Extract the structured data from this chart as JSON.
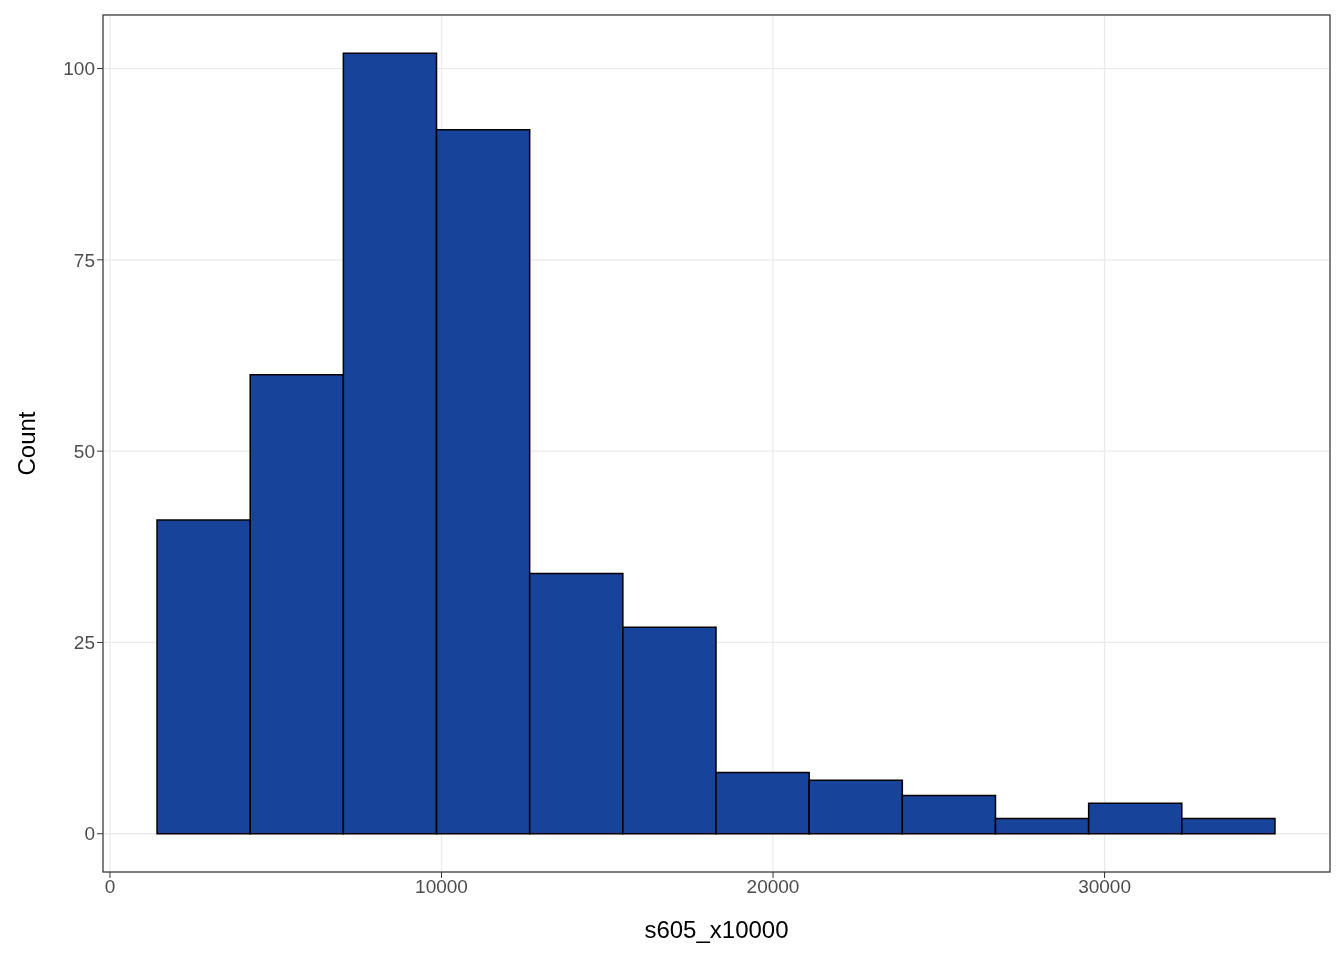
{
  "chart_data": {
    "type": "histogram",
    "xlabel": "s605_x10000",
    "ylabel": "Count",
    "bins": [
      1420,
      4230,
      7040,
      9850,
      12660,
      15470,
      18280,
      21090,
      23900,
      26710,
      29520,
      32330,
      35140
    ],
    "values": [
      41,
      60,
      102,
      92,
      34,
      27,
      8,
      7,
      5,
      2,
      4,
      2
    ],
    "color": "#18439a",
    "xlim": [
      -210,
      36800
    ],
    "xticks": [
      0,
      10000,
      20000,
      30000
    ],
    "ylim": [
      -5,
      107
    ],
    "yticks": [
      0,
      25,
      50,
      75,
      100
    ],
    "grid": true
  }
}
